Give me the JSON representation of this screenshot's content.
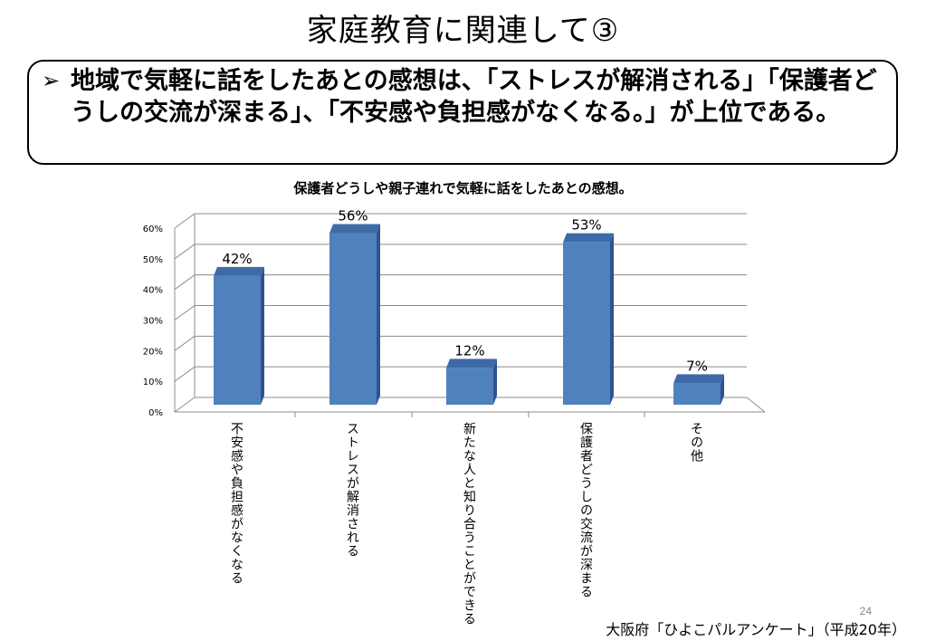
{
  "slide": {
    "title": "家庭教育に関連して③",
    "bullet": "➢",
    "summary": "地域で気軽に話をしたあとの感想は、「ストレスが解消される」「保護者どうしの交流が深まる」、「不安感や負担感がなくなる。」が上位である。",
    "page_number": "24",
    "source": "大阪府「ひよこパルアンケート」（平成20年）"
  },
  "chart_data": {
    "type": "bar",
    "title": "保護者どうしや親子連れで気軽に話をしたあとの感想。",
    "categories": [
      "不安感や負担感がなくなる",
      "ストレスが解消される",
      "新たな人と知り合うことができる",
      "保護者どうしの交流が深まる",
      "その他"
    ],
    "series": [
      {
        "values": [
          42,
          56,
          12,
          53,
          7
        ]
      }
    ],
    "data_labels": [
      "42%",
      "56%",
      "12%",
      "53%",
      "7%"
    ],
    "y_ticks": [
      "0%",
      "10%",
      "20%",
      "30%",
      "40%",
      "50%",
      "60%"
    ],
    "ylim": [
      0,
      60
    ],
    "grid": true,
    "style_3d": true,
    "bar_color": "#4F81BD",
    "bar_side_color": "#2F528F",
    "bar_top_color": "#3E6BA8"
  }
}
